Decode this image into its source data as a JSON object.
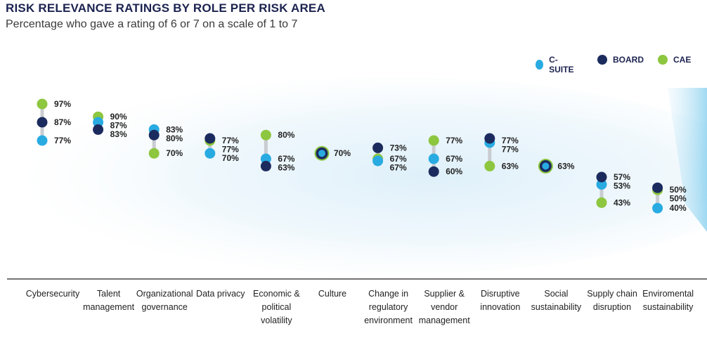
{
  "chart_data": {
    "type": "scatter",
    "title": "RISK RELEVANCE RATINGS BY ROLE PER RISK AREA",
    "subtitle": "Percentage who gave a rating of 6 or 7 on a scale of 1 to 7",
    "ylim": [
      35,
      100
    ],
    "grid": false,
    "legend_position": "top-right",
    "series": [
      {
        "name": "C-SUITE",
        "color": "#29abe2",
        "values": [
          77,
          87,
          83,
          70,
          67,
          70,
          67,
          67,
          77,
          63,
          53,
          40
        ]
      },
      {
        "name": "BOARD",
        "color": "#1c2b5e",
        "values": [
          87,
          83,
          80,
          77,
          63,
          70,
          73,
          60,
          77,
          63,
          57,
          50
        ]
      },
      {
        "name": "CAE",
        "color": "#8dc63f",
        "values": [
          97,
          90,
          70,
          77,
          80,
          70,
          67,
          77,
          63,
          63,
          43,
          50
        ]
      }
    ],
    "categories": [
      [
        "Cybersecurity"
      ],
      [
        "Talent",
        "management"
      ],
      [
        "Organizational",
        "governance"
      ],
      [
        "Data privacy"
      ],
      [
        "Economic &",
        "political",
        "volatility"
      ],
      [
        "Culture"
      ],
      [
        "Change in",
        "regulatory",
        "environment"
      ],
      [
        "Supplier &",
        "vendor",
        "management"
      ],
      [
        "Disruptive",
        "innovation"
      ],
      [
        "Social",
        "sustainability"
      ],
      [
        "Supply chain",
        "disruption"
      ],
      [
        "Enviromental",
        "sustainability"
      ]
    ],
    "value_suffix": "%"
  }
}
